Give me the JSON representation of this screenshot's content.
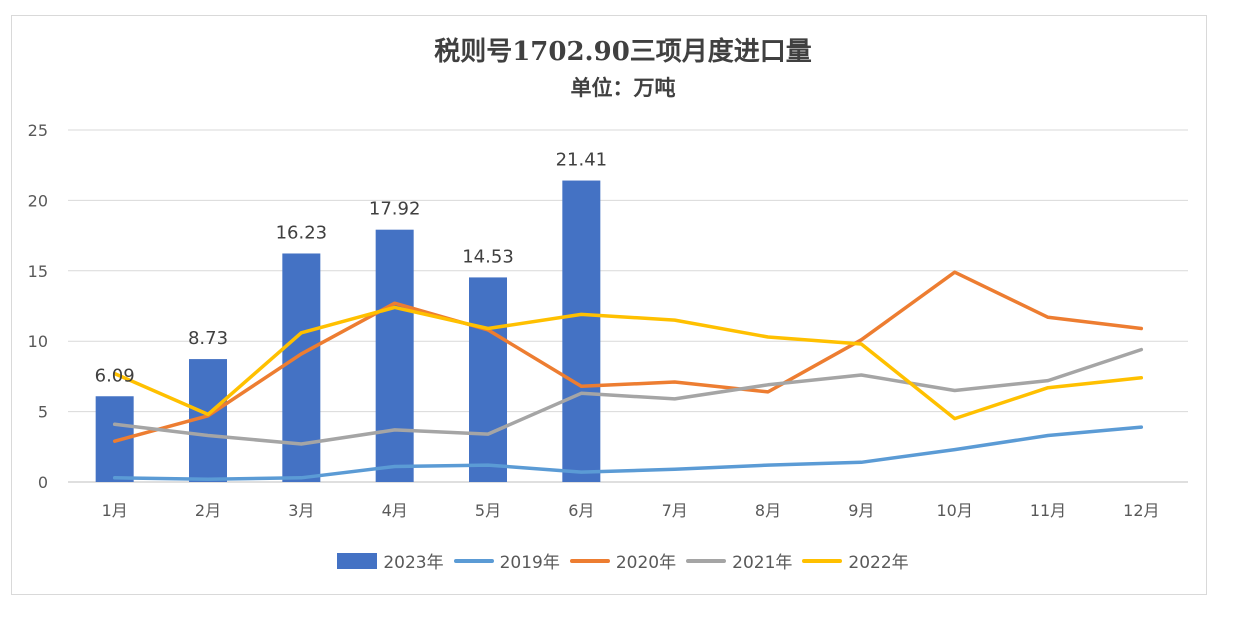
{
  "chart_data": {
    "type": "bar",
    "title": "税则号1702.90三项月度进口量",
    "subtitle": "单位：万吨",
    "categories": [
      "1月",
      "2月",
      "3月",
      "4月",
      "5月",
      "6月",
      "7月",
      "8月",
      "9月",
      "10月",
      "11月",
      "12月"
    ],
    "ylim": [
      0,
      25
    ],
    "yticks": [
      0,
      5,
      10,
      15,
      20,
      25
    ],
    "grid": true,
    "legend_position": "bottom",
    "series": [
      {
        "name": "2023年",
        "type": "bar",
        "color": "#4472C4",
        "values": [
          6.09,
          8.73,
          16.23,
          17.92,
          14.53,
          21.41,
          null,
          null,
          null,
          null,
          null,
          null
        ],
        "labels": [
          "6.09",
          "8.73",
          "16.23",
          "17.92",
          "14.53",
          "21.41"
        ]
      },
      {
        "name": "2019年",
        "type": "line",
        "color": "#5B9BD5",
        "values": [
          0.3,
          0.2,
          0.3,
          1.1,
          1.2,
          0.7,
          0.9,
          1.2,
          1.4,
          2.3,
          3.3,
          3.9
        ]
      },
      {
        "name": "2020年",
        "type": "line",
        "color": "#ED7D31",
        "values": [
          2.9,
          4.7,
          9.1,
          12.7,
          10.8,
          6.8,
          7.1,
          6.4,
          10.1,
          14.9,
          11.7,
          10.9
        ]
      },
      {
        "name": "2021年",
        "type": "line",
        "color": "#A5A5A5",
        "values": [
          4.1,
          3.3,
          2.7,
          3.7,
          3.4,
          6.3,
          5.9,
          6.9,
          7.6,
          6.5,
          7.2,
          9.4
        ]
      },
      {
        "name": "2022年",
        "type": "line",
        "color": "#FFC000",
        "values": [
          7.7,
          4.8,
          10.6,
          12.4,
          10.9,
          11.9,
          11.5,
          10.3,
          9.8,
          4.5,
          6.7,
          7.4
        ]
      }
    ]
  }
}
